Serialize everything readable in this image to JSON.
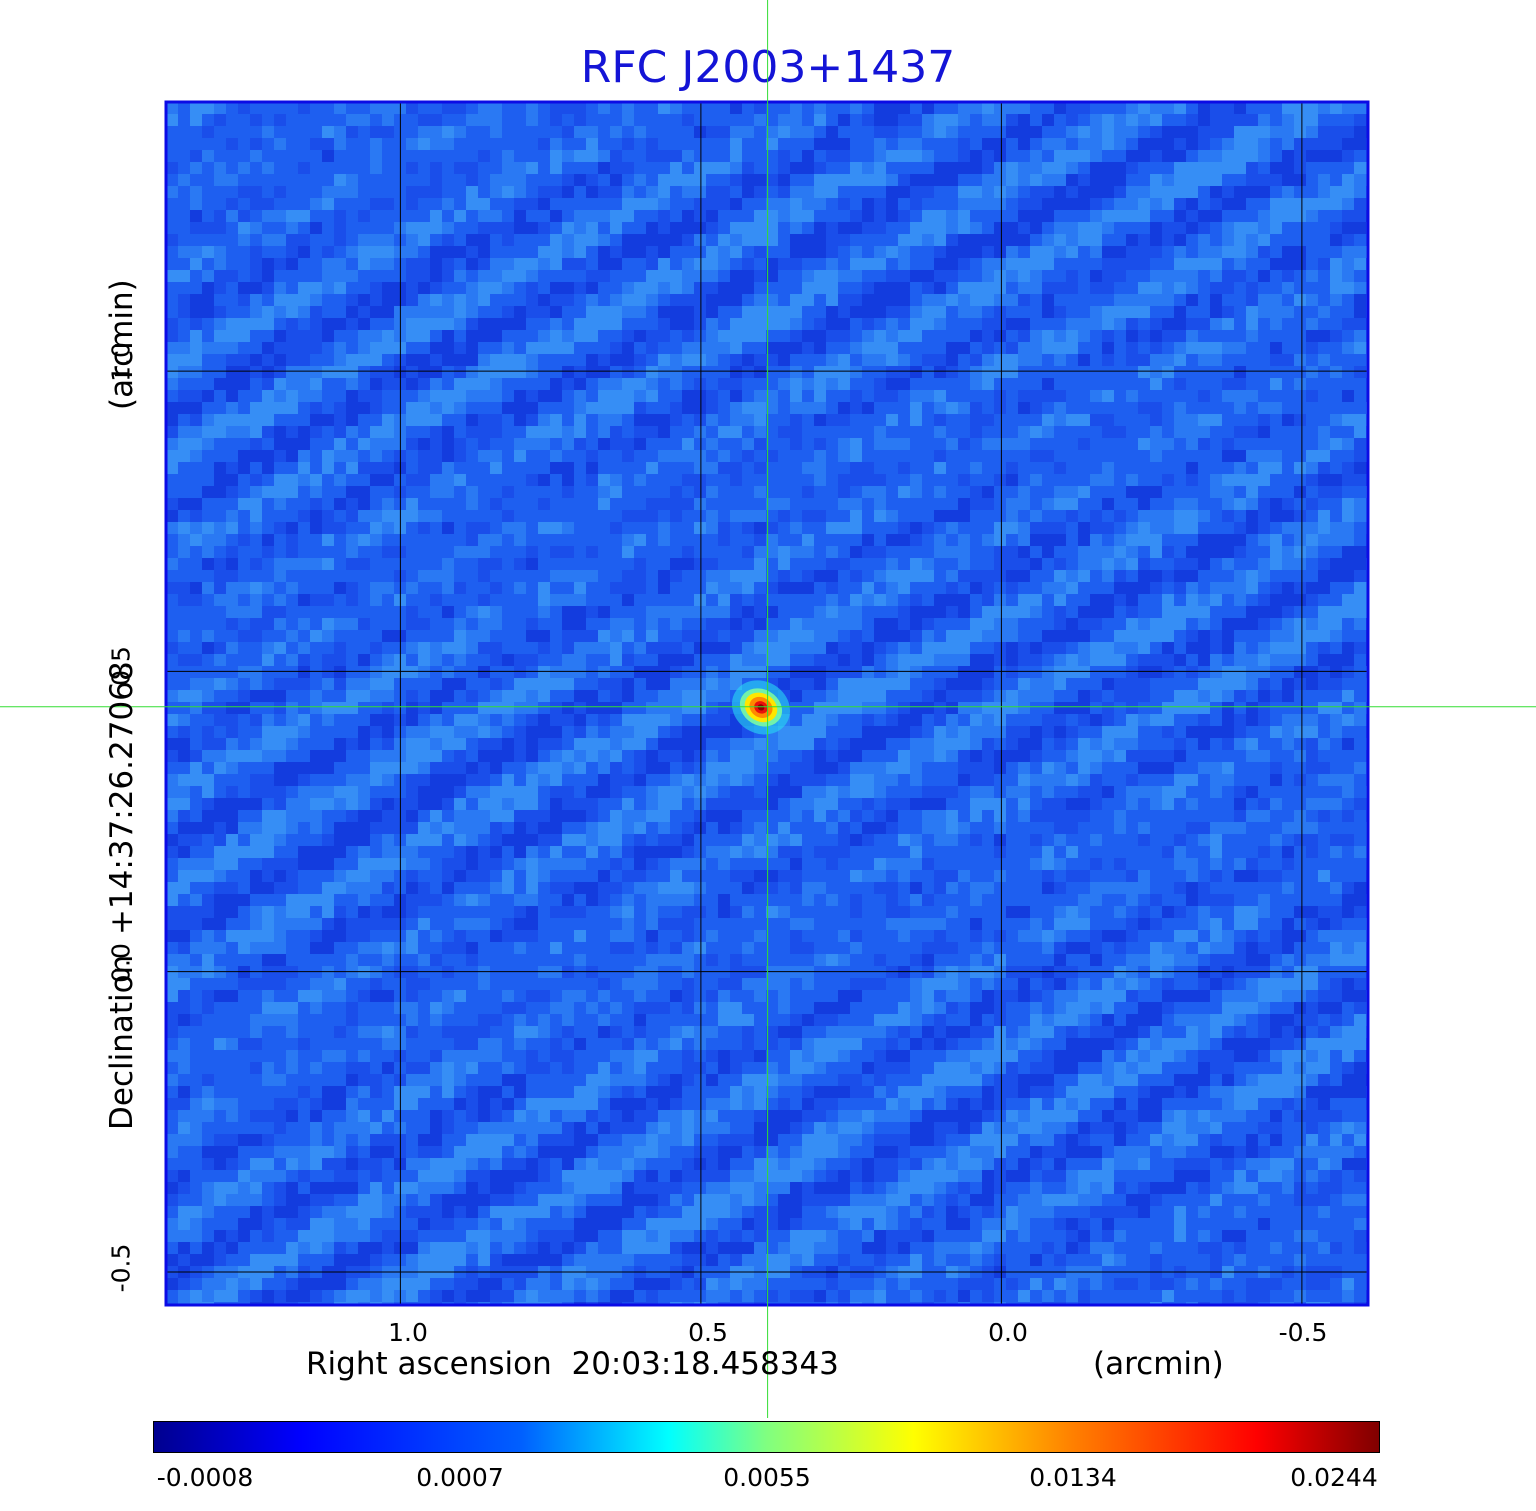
{
  "chart_data": {
    "type": "heatmap",
    "title": "RFC J2003+1437",
    "xlabel": "Right ascension  20:03:18.458343",
    "xunit": "(arcmin)",
    "ylabel": "Declination  +14:37:26.27068",
    "yunit": "(arcmin)",
    "x_ticks": [
      "1.0",
      "0.5",
      "0.0",
      "-0.5"
    ],
    "x_tick_values": [
      1.0,
      0.5,
      0.0,
      -0.5
    ],
    "y_ticks": [
      "1.0",
      "0.5",
      "0.0",
      "-0.5"
    ],
    "y_tick_values": [
      1.0,
      0.5,
      0.0,
      -0.5
    ],
    "xlim": [
      1.39,
      -0.61
    ],
    "ylim": [
      -0.555,
      1.448
    ],
    "grid": true,
    "crosshair": {
      "x": 0.389,
      "y": 0.441
    },
    "source_peak": {
      "x": 0.4,
      "y": 0.44,
      "value": 0.0244
    },
    "colorbar": {
      "ticks": [
        "-0.0008",
        "0.0007",
        "0.0055",
        "0.0134",
        "0.0244"
      ],
      "tick_values": [
        -0.0008,
        0.0007,
        0.0055,
        0.0134,
        0.0244
      ],
      "colormap": "jet"
    }
  },
  "colors": {
    "title": "#1414d6",
    "frame": "#0b0be6",
    "grid": "#000000",
    "crosshair": "#33dd33",
    "background": "#1e5ff0"
  }
}
